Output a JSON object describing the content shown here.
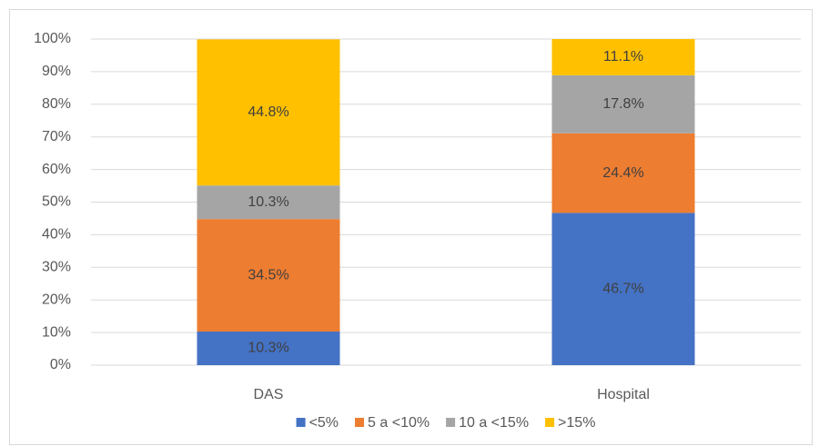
{
  "chart_data": {
    "type": "stacked_bar",
    "categories": [
      "DAS",
      "Hospital"
    ],
    "series": [
      {
        "name": "<5%",
        "color": "#4472c4",
        "values": [
          10.3,
          46.7
        ],
        "value_labels": [
          "10.3%",
          "46.7%"
        ]
      },
      {
        "name": "5 a <10%",
        "color": "#ed7d31",
        "values": [
          34.5,
          24.4
        ],
        "value_labels": [
          "34.5%",
          "24.4%"
        ]
      },
      {
        "name": "10 a <15%",
        "color": "#a5a5a5",
        "values": [
          10.3,
          17.8
        ],
        "value_labels": [
          "10.3%",
          "17.8%"
        ]
      },
      {
        "name": ">15%",
        "color": "#ffc000",
        "values": [
          44.8,
          11.1
        ],
        "value_labels": [
          "44.8%",
          "11.1%"
        ]
      }
    ],
    "ylim": [
      0,
      100
    ],
    "yticks": [
      {
        "value": 0,
        "label": "0%"
      },
      {
        "value": 10,
        "label": "10%"
      },
      {
        "value": 20,
        "label": "20%"
      },
      {
        "value": 30,
        "label": "30%"
      },
      {
        "value": 40,
        "label": "40%"
      },
      {
        "value": 50,
        "label": "50%"
      },
      {
        "value": 60,
        "label": "60%"
      },
      {
        "value": 70,
        "label": "70%"
      },
      {
        "value": 80,
        "label": "80%"
      },
      {
        "value": 90,
        "label": "90%"
      },
      {
        "value": 100,
        "label": "100%"
      }
    ],
    "grid": true,
    "legend": "bottom"
  }
}
